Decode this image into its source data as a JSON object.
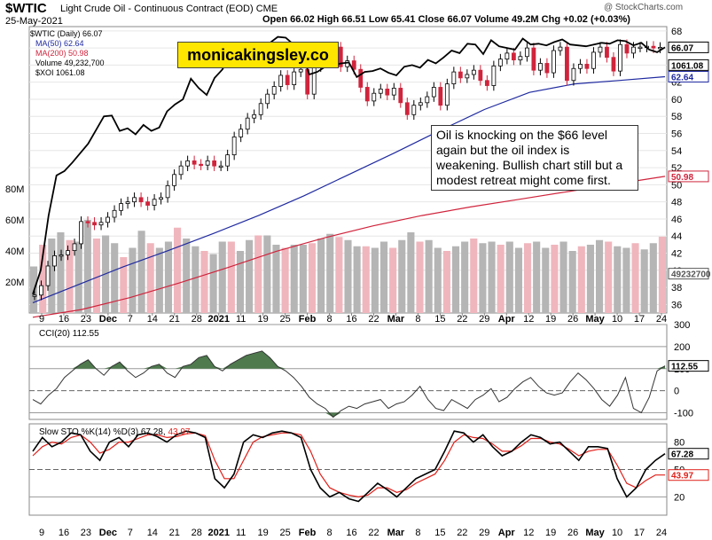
{
  "header": {
    "symbol": "$WTIC",
    "description": "Light Crude Oil - Continuous Contract (EOD)  CME",
    "date": "25-May-2021",
    "ohlc": "Open 66.02  High 66.51  Low 65.41  Close 66.07  Volume 49.2M  Chg +0.02 (+0.03%)",
    "watermark": "@ StockCharts.com"
  },
  "brand_label": "monicakingsley.co",
  "annotation": "Oil is knocking on the $66 level again but the oil index is weakening. Bullish chart still but a modest retreat might come first.",
  "legend": {
    "main": "$WTIC (Daily) 66.07",
    "ma50": "MA(50) 62.64",
    "ma200": "MA(200) 50.98",
    "volume": "Volume 49,232,700",
    "xoi": "$XOI 1061.08",
    "cci": "CCI(20) 112.55",
    "sto_prefix": "Slow STO %K(14) %D(3) 67.28,",
    "sto_d": "43.97"
  },
  "colors": {
    "up": "#000000",
    "down": "#d0243c",
    "ma50": "#1f2aa0",
    "ma200": "#d0243c",
    "volume_up": "#b5b5b5",
    "volume_down": "#f0b6bd",
    "cci_fill": "#4e7a4e",
    "sto_k": "#000000",
    "sto_d": "#e0201a"
  },
  "x_labels": [
    "9",
    "16",
    "23",
    "Dec",
    "7",
    "14",
    "21",
    "28",
    "2021",
    "11",
    "19",
    "25",
    "Feb",
    "8",
    "16",
    "22",
    "Mar",
    "8",
    "15",
    "22",
    "29",
    "Apr",
    "12",
    "19",
    "26",
    "May",
    "10",
    "17",
    "24"
  ],
  "chart_data": [
    {
      "type": "line",
      "panel": "price",
      "title": "$WTIC Light Crude Oil - Continuous Contract (EOD)",
      "y_axis_ticks": [
        36,
        38,
        40,
        42,
        44,
        46,
        48,
        50,
        52,
        54,
        56,
        58,
        60,
        62,
        64,
        66,
        68
      ],
      "ylim": [
        35,
        68.5
      ],
      "volume_axis_ticks": [
        "20M",
        "40M",
        "60M",
        "80M"
      ],
      "series": [
        {
          "name": "$WTIC (Daily)",
          "x": [
            0,
            2,
            4,
            6,
            8,
            10,
            12,
            14,
            16,
            18,
            20,
            22,
            24,
            26,
            28,
            30,
            32,
            34,
            36,
            38,
            40,
            42,
            44,
            46,
            48,
            50,
            52,
            54,
            56,
            58,
            60,
            62,
            64,
            66,
            68,
            70,
            72,
            74,
            76,
            78,
            80,
            82,
            84,
            86,
            88,
            90,
            92,
            94,
            96,
            98,
            100,
            102,
            104,
            106,
            108,
            110,
            112,
            114,
            116,
            118,
            120,
            122,
            124,
            126,
            128,
            130,
            132,
            134,
            136,
            138,
            140,
            142,
            144,
            146,
            148,
            150,
            152,
            154,
            156,
            158,
            160,
            162,
            164,
            166,
            168,
            170,
            172,
            174,
            176,
            178,
            180,
            182,
            184,
            186,
            188
          ],
          "values": [
            37.1,
            38.2,
            40.5,
            41.7,
            41.8,
            42.3,
            43.1,
            45.7,
            45.6,
            45.3,
            45.6,
            46.2,
            47.0,
            47.8,
            48.0,
            48.5,
            48.0,
            47.6,
            48.3,
            48.5,
            49.9,
            51.2,
            52.2,
            52.8,
            52.4,
            52.3,
            52.8,
            52.2,
            52.2,
            53.5,
            55.6,
            56.5,
            57.8,
            58.2,
            59.5,
            60.6,
            61.5,
            62.8,
            61.7,
            63.2,
            63.5,
            60.6,
            63.8,
            64.6,
            65.3,
            66.1,
            63.8,
            64.5,
            63.5,
            61.4,
            59.8,
            60.7,
            61.2,
            60.5,
            61.3,
            59.6,
            58.2,
            59.3,
            59.6,
            60.3,
            61.4,
            59.3,
            61.8,
            63.2,
            62.5,
            62.9,
            63.4,
            62.2,
            61.6,
            63.9,
            64.7,
            65.4,
            64.6,
            65.0,
            66.0,
            63.4,
            64.2,
            63.1,
            65.7,
            66.1,
            62.2,
            63.6,
            64.1,
            63.6,
            65.5,
            66.1,
            64.9,
            63.3,
            66.4,
            65.4,
            66.1,
            66.1,
            66.2,
            66.0,
            66.07
          ]
        },
        {
          "name": "$XOI",
          "values": [
            37.2,
            40.0,
            46.4,
            51.1,
            51.6,
            52.6,
            53.7,
            54.8,
            56.4,
            58.0,
            58.1,
            56.3,
            56.6,
            55.9,
            57.0,
            56.3,
            56.7,
            58.6,
            59.4,
            60.0,
            62.4,
            61.3,
            60.5,
            62.5,
            63.5,
            65.3,
            65.9,
            65.7,
            65.6,
            65.8,
            66.6,
            67.3,
            67.2,
            66.4,
            65.5,
            62.9,
            63.2,
            63.8,
            64.0,
            64.2,
            64.3,
            62.6,
            63.2,
            63.3,
            63.6,
            63.1,
            62.8,
            63.8,
            64.0,
            63.7,
            64.6,
            64.2,
            64.9,
            65.7,
            65.4,
            66.5,
            66.4,
            65.3,
            66.9,
            66.2,
            66.0,
            65.8,
            67.1,
            66.4,
            66.5,
            66.3,
            66.7,
            67.0,
            66.4,
            66.3,
            66.2,
            66.4,
            66.6,
            66.5,
            66.9,
            66.8,
            66.3,
            66.6,
            65.8,
            65.5,
            66.07
          ]
        },
        {
          "name": "MA(50)",
          "values": [
            36.2,
            38.3,
            40.4,
            42.3,
            44.3,
            46.4,
            48.7,
            51.2,
            53.7,
            56.3,
            58.8,
            60.8,
            61.8,
            62.2,
            62.64
          ]
        },
        {
          "name": "MA(200)",
          "values": [
            34.5,
            35.4,
            36.8,
            38.5,
            40.3,
            42.2,
            43.8,
            45.2,
            46.4,
            47.4,
            48.3,
            49.2,
            50.1,
            50.98
          ]
        },
        {
          "name": "Volume",
          "values_millions": [
            30,
            44,
            48,
            52,
            47,
            46,
            60,
            48,
            50,
            45,
            36,
            42,
            53,
            45,
            42,
            46,
            55,
            48,
            43,
            40,
            38,
            46,
            46,
            40,
            47,
            50,
            50,
            44,
            42,
            44,
            44,
            45,
            48,
            51,
            49,
            47,
            43,
            43,
            42,
            46,
            42,
            47,
            52,
            46,
            47,
            42,
            40,
            43,
            46,
            48,
            45,
            46,
            44,
            46,
            42,
            45,
            46,
            42,
            44,
            46,
            40,
            43,
            44,
            47,
            46,
            43,
            42,
            45,
            41,
            45,
            49.2
          ]
        }
      ]
    },
    {
      "type": "area",
      "panel": "indicator",
      "title": "CCI(20) 112.55",
      "y_axis_ticks": [
        -100,
        0,
        100,
        200,
        300
      ],
      "ylim": [
        -130,
        300
      ],
      "series": [
        {
          "name": "CCI(20)",
          "values": [
            -40,
            -60,
            -20,
            10,
            60,
            90,
            120,
            140,
            100,
            70,
            110,
            130,
            90,
            60,
            80,
            110,
            120,
            80,
            60,
            110,
            120,
            150,
            160,
            110,
            90,
            120,
            140,
            160,
            170,
            180,
            150,
            110,
            90,
            60,
            20,
            -30,
            -60,
            -80,
            -120,
            -90,
            -70,
            -80,
            -60,
            -50,
            -40,
            -80,
            -60,
            -50,
            -20,
            20,
            -40,
            -80,
            -90,
            -40,
            -60,
            -80,
            -40,
            -20,
            10,
            -50,
            -30,
            10,
            40,
            60,
            20,
            -10,
            -20,
            -10,
            40,
            80,
            50,
            10,
            -40,
            -70,
            -20,
            60,
            -80,
            -100,
            -30,
            90,
            112.55
          ]
        }
      ]
    },
    {
      "type": "line",
      "panel": "indicator",
      "title": "Slow STO %K(14) %D(3)",
      "y_axis_ticks": [
        20,
        50,
        80
      ],
      "ylim": [
        0,
        100
      ],
      "series": [
        {
          "name": "%K(14)",
          "values": [
            70,
            85,
            75,
            80,
            90,
            88,
            70,
            60,
            80,
            85,
            75,
            88,
            90,
            86,
            80,
            88,
            92,
            90,
            85,
            40,
            30,
            45,
            80,
            88,
            85,
            90,
            92,
            90,
            85,
            50,
            30,
            20,
            25,
            18,
            15,
            25,
            35,
            28,
            20,
            30,
            40,
            45,
            50,
            70,
            92,
            90,
            80,
            88,
            75,
            65,
            70,
            80,
            88,
            85,
            78,
            80,
            70,
            60,
            75,
            75,
            73,
            40,
            20,
            30,
            50,
            60,
            67.28
          ]
        },
        {
          "name": "%D(3)",
          "values": [
            65,
            75,
            80,
            78,
            85,
            88,
            80,
            68,
            72,
            80,
            80,
            84,
            88,
            88,
            85,
            86,
            89,
            90,
            87,
            60,
            40,
            40,
            60,
            80,
            86,
            88,
            90,
            90,
            88,
            70,
            45,
            30,
            25,
            22,
            20,
            22,
            30,
            30,
            25,
            28,
            35,
            40,
            45,
            60,
            80,
            88,
            85,
            84,
            78,
            70,
            70,
            76,
            84,
            84,
            80,
            78,
            72,
            65,
            70,
            72,
            72,
            55,
            35,
            30,
            38,
            44,
            43.97
          ]
        }
      ]
    }
  ]
}
